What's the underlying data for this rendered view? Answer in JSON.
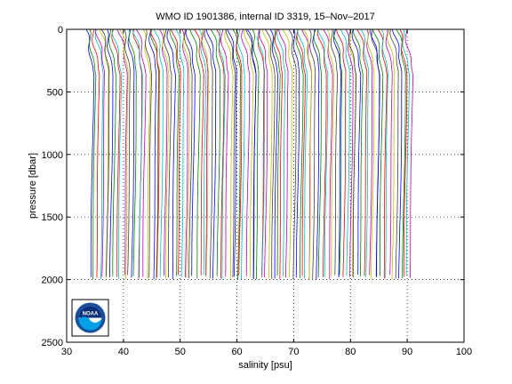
{
  "chart_data": {
    "type": "line",
    "title": "WMO ID 1901386, internal ID 3319, 15–Nov–2017",
    "xlabel": "salinity [psu]",
    "ylabel": "pressure [dbar]",
    "xlim": [
      30,
      100
    ],
    "ylim": [
      0,
      2500
    ],
    "y_reversed": true,
    "grid": true,
    "grid_style": "dotted",
    "x_ticks": [
      "30",
      "40",
      "50",
      "60",
      "70",
      "80",
      "90",
      "100"
    ],
    "y_ticks": [
      "0",
      "500",
      "1000",
      "1500",
      "2000",
      "2500"
    ],
    "profile_family": {
      "count": 110,
      "offset_start_psu": 34.5,
      "offset_end_psu": 90.8,
      "max_pressure_dbar": 2000,
      "series_colors": [
        "#0000ff",
        "#008000",
        "#ff0000",
        "#00bfbf",
        "#bf00bf",
        "#bfbf00",
        "#404040"
      ]
    }
  },
  "logo": {
    "text": "NOAA",
    "ring_color": "#1a4f9c",
    "sky_color": "#0a2d7a",
    "wave_color": "#00a0e6"
  }
}
